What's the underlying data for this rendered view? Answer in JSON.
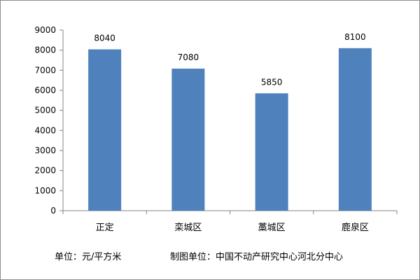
{
  "chart_data": {
    "type": "bar",
    "categories": [
      "正定",
      "栾城区",
      "藁城区",
      "鹿泉区"
    ],
    "values": [
      8040,
      7080,
      5850,
      8100
    ],
    "ylim": [
      0,
      9000
    ],
    "yticks": [
      0,
      1000,
      2000,
      3000,
      4000,
      5000,
      6000,
      7000,
      8000,
      9000
    ],
    "grid": false,
    "legend": "none",
    "bar_color": "#4f81bd",
    "data_labels": [
      "8040",
      "7080",
      "5850",
      "8100"
    ]
  },
  "footer": {
    "unit": "单位：元/平方米",
    "source": "制图单位：中国不动产研究中心河北分中心"
  },
  "colors": {
    "bar": "#4f81bd",
    "axis": "#868686",
    "frame": "#8c8c8c"
  }
}
